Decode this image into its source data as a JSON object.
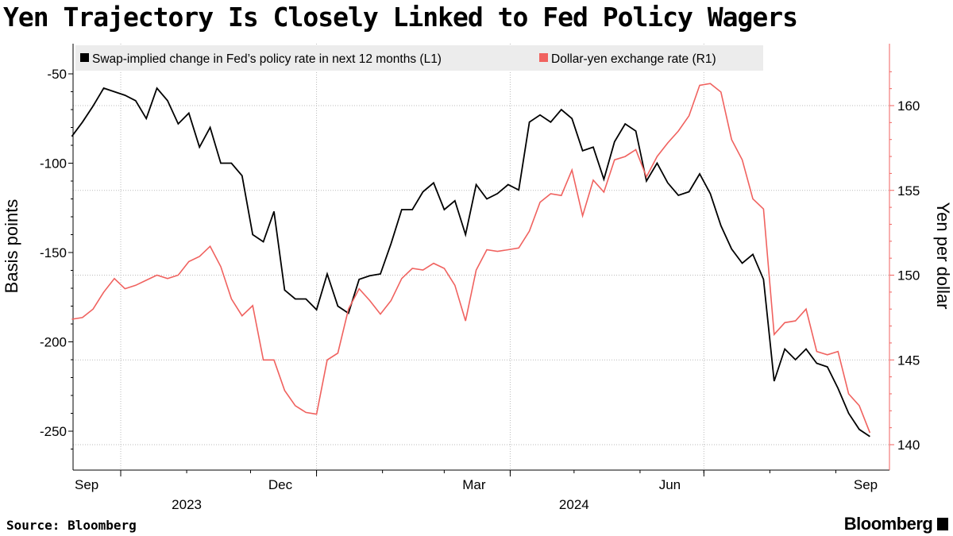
{
  "title": "Yen Trajectory Is Closely Linked to Fed Policy Wagers",
  "source": "Source: Bloomberg",
  "logo": "Bloomberg",
  "chart_data": {
    "type": "line",
    "title": "Yen Trajectory Is Closely Linked to Fed Policy Wagers",
    "ylabel": "Basis points",
    "ylabel_right": "Yen per dollar",
    "ylim": [
      -270,
      -40
    ],
    "ylim_right": [
      138.5,
      162.5
    ],
    "yticks": [
      -50,
      -100,
      -150,
      -200,
      -250
    ],
    "yticks_right": [
      140,
      145,
      150,
      155,
      160
    ],
    "xtick_labels": [
      {
        "label": "Sep",
        "date": "2023-09-15"
      },
      {
        "label": "Dec",
        "date": "2023-12-15"
      },
      {
        "label": "Mar",
        "date": "2024-03-15"
      },
      {
        "label": "Jun",
        "date": "2024-06-15"
      },
      {
        "label": "Sep",
        "date": "2024-09-15"
      }
    ],
    "year_labels": [
      {
        "label": "2023",
        "date": "2023-11-01"
      },
      {
        "label": "2024",
        "date": "2024-05-01"
      }
    ],
    "grid": true,
    "legend_placement": "top",
    "x": [
      "2023-09-08",
      "2023-09-13",
      "2023-09-18",
      "2023-09-23",
      "2023-09-28",
      "2023-10-03",
      "2023-10-08",
      "2023-10-13",
      "2023-10-18",
      "2023-10-23",
      "2023-10-28",
      "2023-11-02",
      "2023-11-07",
      "2023-11-12",
      "2023-11-17",
      "2023-11-22",
      "2023-11-27",
      "2023-12-02",
      "2023-12-07",
      "2023-12-12",
      "2023-12-17",
      "2023-12-22",
      "2023-12-27",
      "2024-01-01",
      "2024-01-06",
      "2024-01-11",
      "2024-01-16",
      "2024-01-21",
      "2024-01-26",
      "2024-01-31",
      "2024-02-05",
      "2024-02-10",
      "2024-02-15",
      "2024-02-20",
      "2024-02-25",
      "2024-03-01",
      "2024-03-06",
      "2024-03-11",
      "2024-03-16",
      "2024-03-21",
      "2024-03-26",
      "2024-03-31",
      "2024-04-05",
      "2024-04-10",
      "2024-04-15",
      "2024-04-20",
      "2024-04-25",
      "2024-04-30",
      "2024-05-05",
      "2024-05-10",
      "2024-05-15",
      "2024-05-20",
      "2024-05-25",
      "2024-05-30",
      "2024-06-04",
      "2024-06-09",
      "2024-06-14",
      "2024-06-19",
      "2024-06-24",
      "2024-06-29",
      "2024-07-04",
      "2024-07-09",
      "2024-07-14",
      "2024-07-19",
      "2024-07-24",
      "2024-07-29",
      "2024-08-03",
      "2024-08-08",
      "2024-08-13",
      "2024-08-18",
      "2024-08-23",
      "2024-08-28",
      "2024-09-02",
      "2024-09-07",
      "2024-09-12",
      "2024-09-17"
    ],
    "series": [
      {
        "name": "Swap-implied change in Fed’s policy rate in next 12 months (L1)",
        "axis": "left",
        "color": "#000000",
        "values": [
          -85,
          -77,
          -68,
          -58,
          -60,
          -62,
          -65,
          -75,
          -58,
          -65,
          -78,
          -72,
          -91,
          -80,
          -100,
          -100,
          -107,
          -140,
          -144,
          -127,
          -171,
          -176,
          -176,
          -182,
          -162,
          -180,
          -184,
          -165,
          -163,
          -162,
          -145,
          -126,
          -126,
          -116,
          -111,
          -126,
          -121,
          -140,
          -112,
          -120,
          -117,
          -112,
          -115,
          -77,
          -73,
          -77,
          -70,
          -75,
          -93,
          -91,
          -109,
          -88,
          -78,
          -82,
          -110,
          -100,
          -111,
          -118,
          -116,
          -106,
          -117,
          -135,
          -148,
          -156,
          -151,
          -165,
          -222,
          -204,
          -210,
          -204,
          -212,
          -214,
          -226,
          -240,
          -249,
          -253
        ]
      },
      {
        "name": "Dollar-yen exchange rate (R1)",
        "axis": "right",
        "color": "#f0625f",
        "values": [
          147.4,
          147.5,
          148,
          149,
          149.8,
          149.2,
          149.4,
          149.7,
          150,
          149.8,
          150,
          150.8,
          151.1,
          151.7,
          150.5,
          148.6,
          147.6,
          148.2,
          145,
          145,
          143.2,
          142.3,
          141.9,
          141.8,
          145,
          145.4,
          148,
          149.2,
          148.5,
          147.7,
          148.5,
          149.8,
          150.4,
          150.3,
          150.7,
          150.4,
          149.4,
          147.3,
          150.3,
          151.5,
          151.4,
          151.5,
          151.6,
          152.6,
          154.3,
          154.8,
          154.7,
          156.2,
          153.5,
          155.6,
          154.9,
          156.8,
          157,
          157.4,
          155.8,
          157,
          157.8,
          158.5,
          159.4,
          161.2,
          161.3,
          160.8,
          158,
          156.8,
          154.5,
          153.9,
          146.5,
          147.2,
          147.3,
          148,
          145.5,
          145.3,
          145.5,
          143,
          142.3,
          140.7
        ]
      }
    ]
  }
}
